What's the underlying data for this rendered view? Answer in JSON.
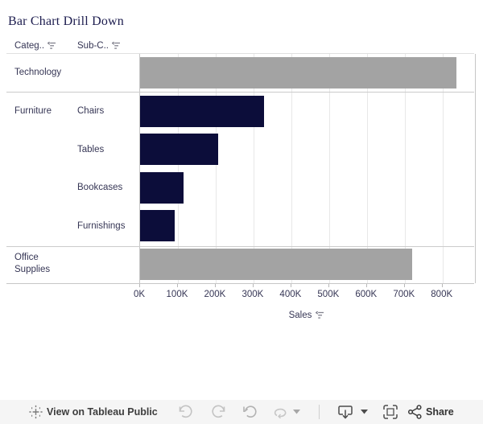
{
  "title": "Bar Chart Drill Down",
  "header": {
    "category_column": "Categ..",
    "subcategory_column": "Sub-C.."
  },
  "chart_data": {
    "type": "bar",
    "orientation": "horizontal",
    "title": "Bar Chart Drill Down",
    "xlabel": "Sales",
    "x_axis": {
      "ticks": [
        "0K",
        "100K",
        "200K",
        "300K",
        "400K",
        "500K",
        "600K",
        "700K",
        "800K"
      ],
      "tick_values_k": [
        0,
        100,
        200,
        300,
        400,
        500,
        600,
        700,
        800
      ],
      "max_k": 890,
      "gridlines": true
    },
    "rows": [
      {
        "category": "Technology",
        "subcategory": "",
        "sales_k": 836,
        "level": "category",
        "color": "#a3a3a3"
      },
      {
        "category": "Furniture",
        "subcategory": "Chairs",
        "sales_k": 328,
        "level": "subcategory",
        "color": "#0c0d3a"
      },
      {
        "category": "",
        "subcategory": "Tables",
        "sales_k": 207,
        "level": "subcategory",
        "color": "#0c0d3a"
      },
      {
        "category": "",
        "subcategory": "Bookcases",
        "sales_k": 115,
        "level": "subcategory",
        "color": "#0c0d3a"
      },
      {
        "category": "",
        "subcategory": "Furnishings",
        "sales_k": 92,
        "level": "subcategory",
        "color": "#0c0d3a"
      },
      {
        "category": "Office Supplies",
        "subcategory": "",
        "sales_k": 719,
        "level": "category",
        "color": "#a3a3a3"
      }
    ],
    "legend": "none"
  },
  "axis": {
    "label": "Sales"
  },
  "colors": {
    "bar_category": "#a3a3a3",
    "bar_subcategory": "#0c0d3a",
    "title_text": "#1c1c4e",
    "label_text": "#363655",
    "gridline": "#e8e8e8",
    "toolbar_bg": "#f5f5f5"
  },
  "toolbar": {
    "view_on_label": "View on Tableau Public",
    "share_label": "Share",
    "buttons": [
      "undo",
      "redo",
      "reset",
      "replay",
      "replay-options",
      "download",
      "fullscreen",
      "share"
    ]
  }
}
